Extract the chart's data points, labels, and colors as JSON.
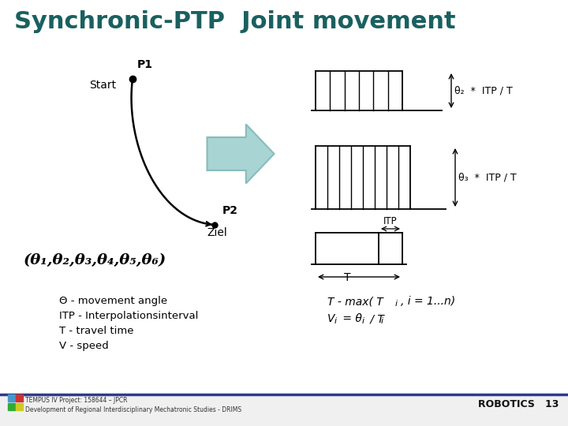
{
  "title": "Synchronic-PTP  Joint movement",
  "title_color": "#1a6060",
  "title_fontsize": 22,
  "bg_color": "#ffffff",
  "footer_left1": "TEMPUS IV Project: 158644 – JPCR",
  "footer_left2": "Development of Regional Interdisciplinary Mechatronic Studies - DRIMS",
  "footer_right": "ROBOTICS   13",
  "label_start": "Start",
  "label_p1": "P1",
  "label_p2": "P2",
  "label_ziel": "Ziel",
  "theta_label": "(θ₁,θ₂,θ₃,θ₄,θ₅,θ₆)",
  "desc_lines": [
    "Θ - movement angle",
    "ITP - Interpolationsinterval",
    "T - travel time",
    "V - speed"
  ],
  "formula_line1": "T - max( T",
  "formula_line1b": "i",
  "formula_line1c": ", i = 1...n)",
  "formula_line2a": "V",
  "formula_line2b": "i",
  "formula_line2c": " = θ",
  "formula_line2d": "i",
  "formula_line2e": " / T",
  "formula_line2f": "i",
  "bar1_label": "θ₂  *  ITP / T",
  "bar2_label": "θ₃  *  ITP / T",
  "itp_label": "ITP",
  "t_label": "T",
  "arrow_color": "#a8d4d4",
  "arrow_edge_color": "#88bcbc"
}
